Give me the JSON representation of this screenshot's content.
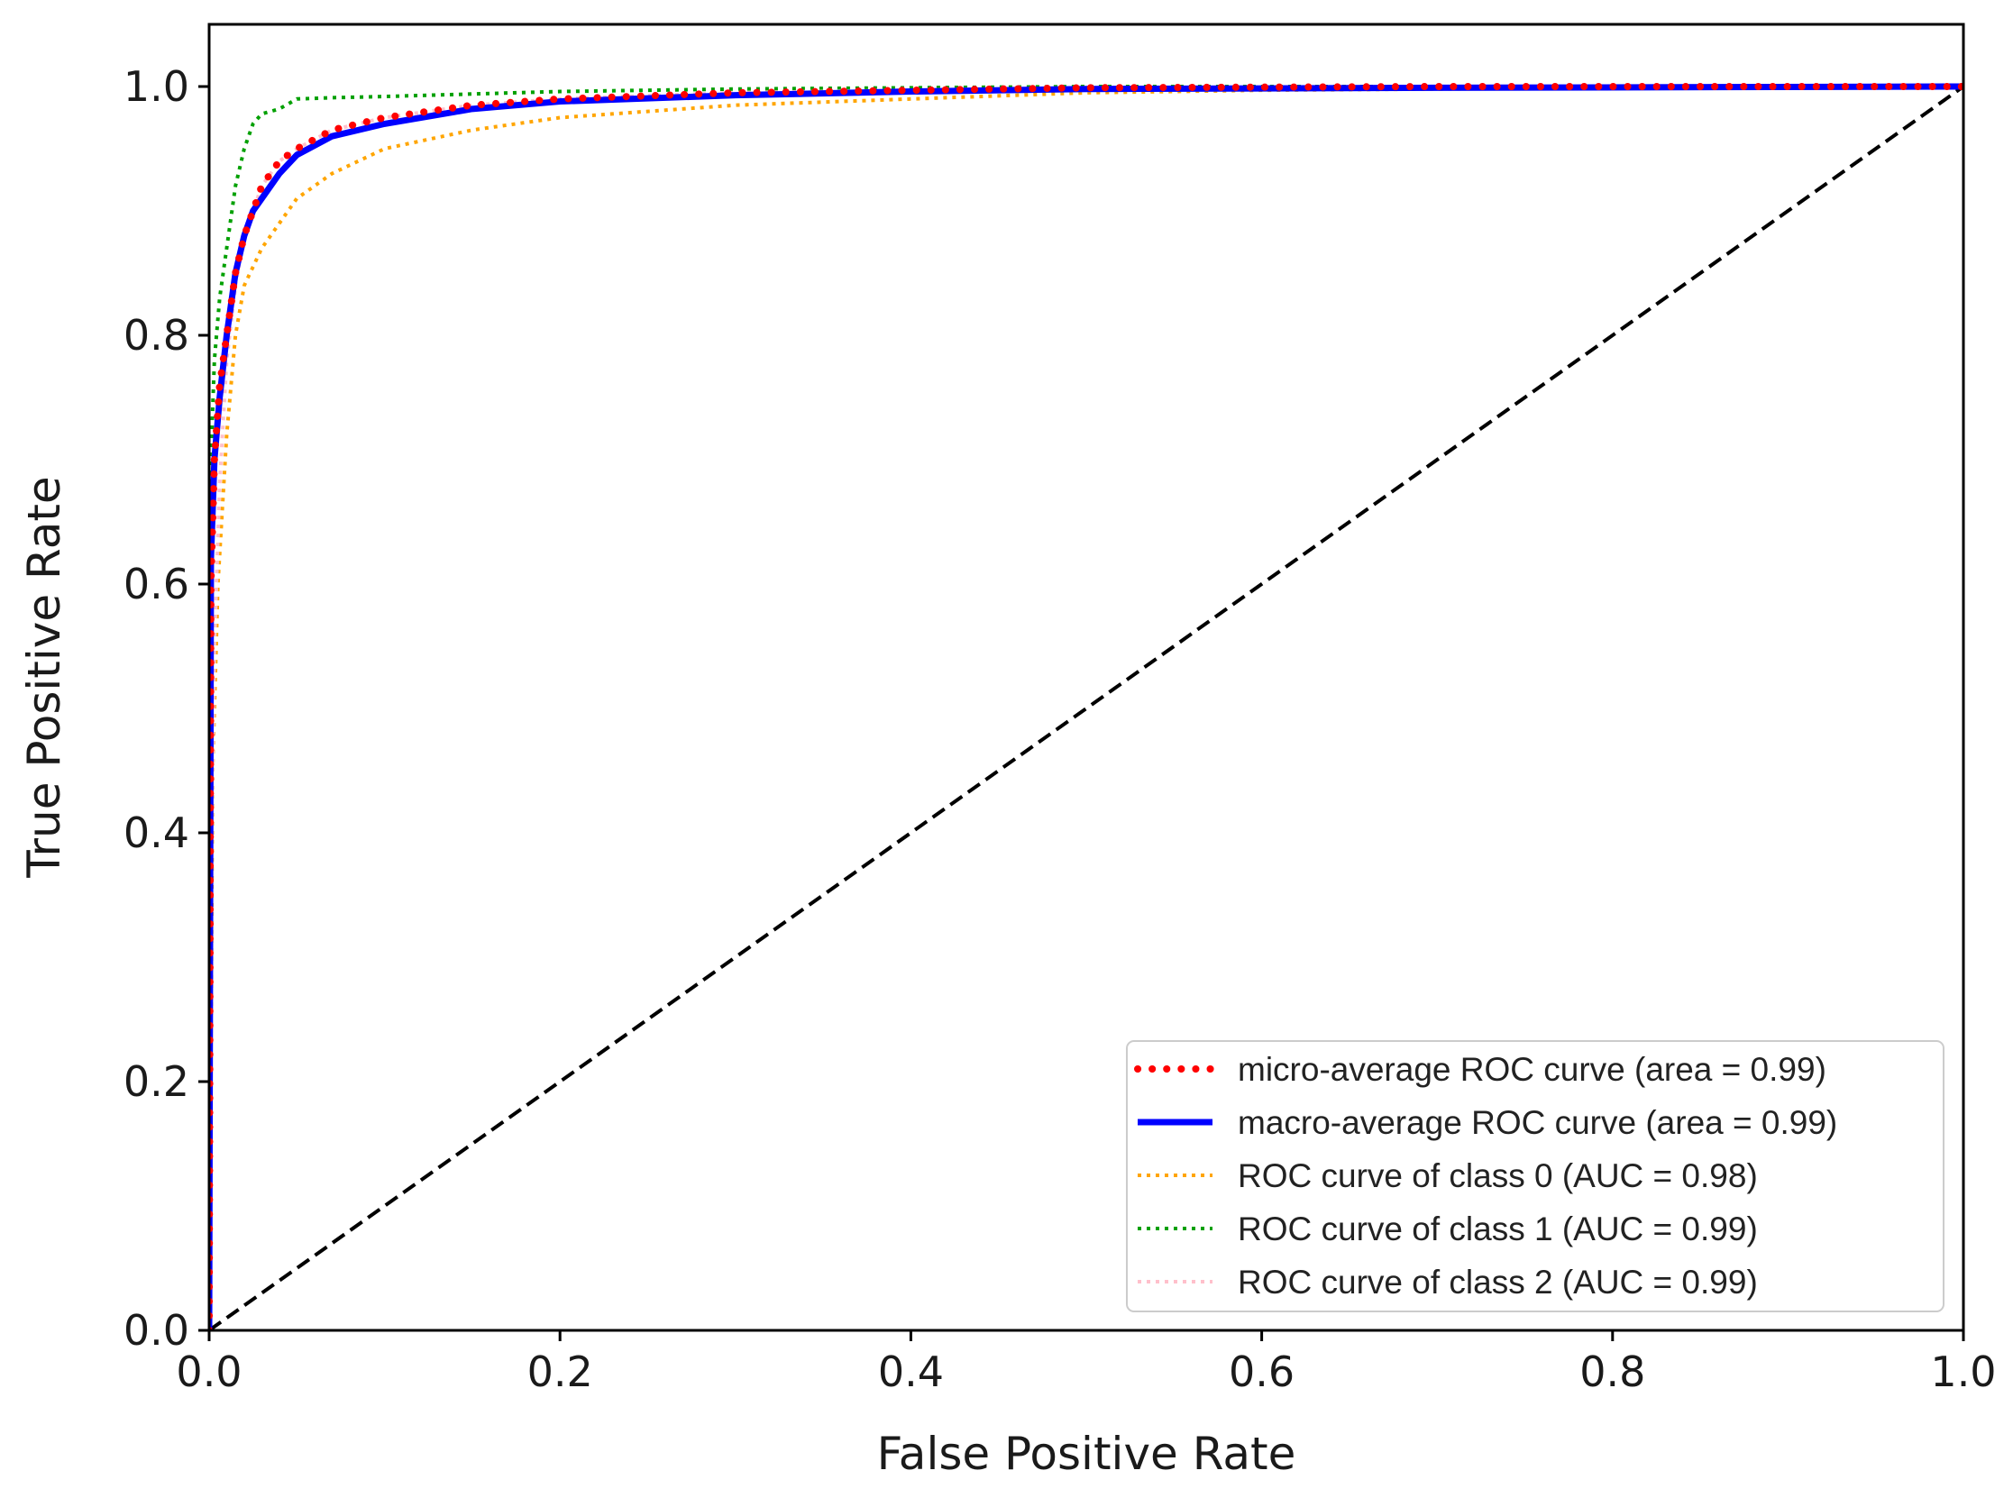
{
  "chart_data": {
    "type": "line",
    "title": "",
    "xlabel": "False Positive Rate",
    "ylabel": "True Positive Rate",
    "xlim": [
      0.0,
      1.0
    ],
    "ylim": [
      0.0,
      1.05
    ],
    "grid": false,
    "legend_position": "bottom-right",
    "x_ticks": [
      "0.0",
      "0.2",
      "0.4",
      "0.6",
      "0.8",
      "1.0"
    ],
    "y_ticks": [
      "0.0",
      "0.2",
      "0.4",
      "0.6",
      "0.8",
      "1.0"
    ],
    "series": [
      {
        "name": "micro-average ROC curve (area = 0.99)",
        "color": "#ff0000",
        "style": "dotted-thick",
        "x": [
          0,
          0.001,
          0.003,
          0.006,
          0.01,
          0.015,
          0.02,
          0.025,
          0.03,
          0.04,
          0.05,
          0.07,
          0.1,
          0.15,
          0.2,
          0.3,
          0.4,
          0.5,
          0.7,
          1.0
        ],
        "y": [
          0,
          0.6,
          0.7,
          0.76,
          0.8,
          0.85,
          0.88,
          0.9,
          0.92,
          0.94,
          0.95,
          0.965,
          0.975,
          0.985,
          0.99,
          0.995,
          0.997,
          0.999,
          1.0,
          1.0
        ]
      },
      {
        "name": "macro-average ROC curve (area = 0.99)",
        "color": "#0000ff",
        "style": "solid-thick",
        "x": [
          0,
          0.001,
          0.003,
          0.006,
          0.01,
          0.015,
          0.02,
          0.025,
          0.03,
          0.04,
          0.05,
          0.07,
          0.1,
          0.15,
          0.2,
          0.3,
          0.4,
          0.5,
          0.7,
          1.0
        ],
        "y": [
          0,
          0.62,
          0.7,
          0.75,
          0.8,
          0.85,
          0.88,
          0.9,
          0.91,
          0.93,
          0.945,
          0.96,
          0.97,
          0.982,
          0.988,
          0.993,
          0.996,
          0.998,
          0.999,
          1.0
        ]
      },
      {
        "name": "ROC curve of class 0 (AUC = 0.98)",
        "color": "#ffa500",
        "style": "dotted",
        "x": [
          0,
          0.002,
          0.005,
          0.01,
          0.015,
          0.02,
          0.03,
          0.04,
          0.05,
          0.07,
          0.1,
          0.15,
          0.2,
          0.25,
          0.3,
          0.4,
          0.5,
          0.6,
          0.8,
          1.0
        ],
        "y": [
          0,
          0.45,
          0.6,
          0.72,
          0.8,
          0.84,
          0.87,
          0.89,
          0.91,
          0.93,
          0.95,
          0.965,
          0.975,
          0.98,
          0.985,
          0.99,
          0.995,
          0.997,
          0.999,
          1.0
        ]
      },
      {
        "name": "ROC curve of class 1 (AUC = 0.99)",
        "color": "#00a000",
        "style": "dotted",
        "x": [
          0,
          0.001,
          0.003,
          0.006,
          0.01,
          0.015,
          0.02,
          0.025,
          0.03,
          0.04,
          0.05,
          0.07,
          0.1,
          0.15,
          0.2,
          0.3,
          0.5,
          1.0
        ],
        "y": [
          0,
          0.7,
          0.78,
          0.83,
          0.87,
          0.92,
          0.95,
          0.97,
          0.978,
          0.982,
          0.99,
          0.991,
          0.992,
          0.994,
          0.996,
          0.998,
          1.0,
          1.0
        ]
      },
      {
        "name": "ROC curve of class 2 (AUC = 0.99)",
        "color": "#ffc0cb",
        "style": "dotted",
        "x": [
          0,
          0.001,
          0.003,
          0.006,
          0.01,
          0.015,
          0.02,
          0.025,
          0.03,
          0.04,
          0.05,
          0.07,
          0.1,
          0.15,
          0.2,
          0.3,
          0.5,
          1.0
        ],
        "y": [
          0,
          0.35,
          0.55,
          0.68,
          0.78,
          0.84,
          0.88,
          0.9,
          0.92,
          0.94,
          0.95,
          0.965,
          0.975,
          0.985,
          0.99,
          0.995,
          0.999,
          1.0
        ]
      }
    ],
    "reference_line": {
      "name": "chance",
      "x": [
        0,
        1
      ],
      "y": [
        0,
        1
      ],
      "color": "#000000",
      "style": "dashed"
    }
  }
}
